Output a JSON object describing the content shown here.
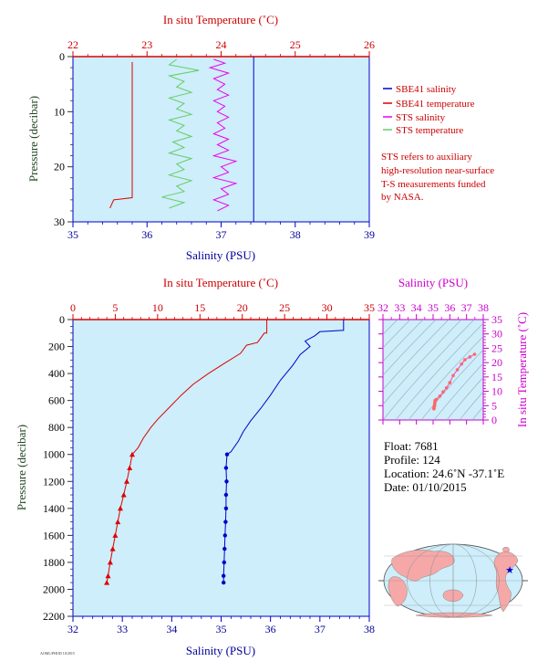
{
  "colors": {
    "plot_bg": "#cdeefa",
    "salinity": "#0000cc",
    "temperature": "#dd0000",
    "sts_salinity": "#ee00ee",
    "sts_temperature": "#66cc66",
    "sal_axis_text": "#000099",
    "temp_axis_text": "#cc0000",
    "pressure_axis_text": "#224422",
    "ts_axis_text": "#cc00cc",
    "legend_text": "#cc0000"
  },
  "top_chart": {
    "temp_axis_title": "In situ Temperature (˚C)",
    "sal_axis_title": "Salinity (PSU)",
    "pressure_axis_title": "Pressure (decibar)",
    "temp_ticks": [
      "22",
      "23",
      "24",
      "25",
      "26"
    ],
    "sal_ticks": [
      "35",
      "36",
      "37",
      "38",
      "39"
    ],
    "pressure_ticks": [
      "0",
      "10",
      "20",
      "30"
    ],
    "legend": [
      {
        "label": "SBE41 salinity",
        "color": "#0000cc"
      },
      {
        "label": "SBE41 temperature",
        "color": "#dd0000"
      },
      {
        "label": "STS salinity",
        "color": "#ee00ee"
      },
      {
        "label": "STS temperature",
        "color": "#66cc66"
      }
    ],
    "note_lines": [
      "STS refers to auxiliary",
      "high-resolution near-surface",
      "T-S measurements funded",
      "by NASA."
    ]
  },
  "bottom_chart": {
    "temp_axis_title": "In situ Temperature (˚C)",
    "sal_axis_title": "Salinity (PSU)",
    "pressure_axis_title": "Pressure (decibar)",
    "temp_ticks": [
      "0",
      "5",
      "10",
      "15",
      "20",
      "25",
      "30",
      "35"
    ],
    "sal_ticks": [
      "32",
      "33",
      "34",
      "35",
      "36",
      "37",
      "38"
    ],
    "pressure_ticks": [
      "0",
      "200",
      "400",
      "600",
      "800",
      "1000",
      "1200",
      "1400",
      "1600",
      "1800",
      "2000",
      "2200"
    ]
  },
  "ts_chart": {
    "sal_axis_title": "Salinity (PSU)",
    "temp_axis_title": "In situ Temperature (˚C)",
    "sal_ticks": [
      "32",
      "33",
      "34",
      "35",
      "36",
      "37",
      "38"
    ],
    "temp_ticks": [
      "35",
      "30",
      "25",
      "20",
      "15",
      "10",
      "5",
      "0"
    ]
  },
  "info": {
    "float_line": "Float: 7681",
    "profile_line": "Profile: 124",
    "location_line": "Location: 24.6˚N -37.1˚E",
    "date_line": "Date: 01/10/2015"
  },
  "footer_code": "AOML/PHOD 10/2015",
  "chart_data": [
    {
      "type": "line",
      "title": "",
      "xlabel": "Salinity (PSU)",
      "x2label": "In situ Temperature (˚C)",
      "ylabel": "Pressure (decibar)",
      "xlim": [
        35,
        39
      ],
      "x2lim": [
        22,
        26
      ],
      "ylim": [
        30,
        0
      ],
      "series": [
        {
          "name": "SBE41 salinity",
          "axis": "salinity",
          "points": [
            [
              37.44,
              0
            ],
            [
              37.44,
              2
            ],
            [
              37.44,
              5
            ],
            [
              37.44,
              10
            ],
            [
              37.44,
              15
            ],
            [
              37.44,
              20
            ],
            [
              37.44,
              25
            ],
            [
              37.44,
              27.5
            ],
            [
              37.44,
              30
            ]
          ]
        },
        {
          "name": "SBE41 temperature",
          "axis": "temperature",
          "points": [
            [
              22.8,
              1
            ],
            [
              22.8,
              5
            ],
            [
              22.8,
              10
            ],
            [
              22.8,
              15
            ],
            [
              22.8,
              20
            ],
            [
              22.8,
              25
            ],
            [
              22.8,
              25.6
            ],
            [
              22.55,
              26
            ],
            [
              22.5,
              27.5
            ]
          ]
        },
        {
          "name": "STS salinity",
          "axis": "salinity",
          "points": [
            [
              36.9,
              0.5
            ],
            [
              37.05,
              1.2
            ],
            [
              36.85,
              2
            ],
            [
              37.1,
              3
            ],
            [
              36.9,
              4
            ],
            [
              37.05,
              5
            ],
            [
              36.95,
              6
            ],
            [
              37.1,
              7
            ],
            [
              36.9,
              8
            ],
            [
              37.05,
              9
            ],
            [
              36.95,
              10
            ],
            [
              37.1,
              11
            ],
            [
              36.95,
              12
            ],
            [
              37.05,
              13
            ],
            [
              36.9,
              14
            ],
            [
              37.1,
              15
            ],
            [
              36.95,
              16
            ],
            [
              37.1,
              17
            ],
            [
              36.9,
              18
            ],
            [
              37.2,
              19
            ],
            [
              37.0,
              20
            ],
            [
              37.1,
              21
            ],
            [
              36.9,
              22
            ],
            [
              37.2,
              23
            ],
            [
              37.0,
              24
            ],
            [
              37.1,
              25
            ],
            [
              36.9,
              26
            ],
            [
              37.1,
              27
            ],
            [
              36.95,
              28
            ]
          ]
        },
        {
          "name": "STS temperature",
          "axis": "temperature",
          "points": [
            [
              23.4,
              0.5
            ],
            [
              23.3,
              1.5
            ],
            [
              23.7,
              2.5
            ],
            [
              23.3,
              3.5
            ],
            [
              23.5,
              4.5
            ],
            [
              23.4,
              5.5
            ],
            [
              23.6,
              6.5
            ],
            [
              23.3,
              7.5
            ],
            [
              23.5,
              8.5
            ],
            [
              23.4,
              9.5
            ],
            [
              23.6,
              10.5
            ],
            [
              23.3,
              11.5
            ],
            [
              23.5,
              12.5
            ],
            [
              23.4,
              13.5
            ],
            [
              23.6,
              14.5
            ],
            [
              23.35,
              15.5
            ],
            [
              23.5,
              16.5
            ],
            [
              23.3,
              17.5
            ],
            [
              23.6,
              18.5
            ],
            [
              23.4,
              19.5
            ],
            [
              23.5,
              20.5
            ],
            [
              23.3,
              21.5
            ],
            [
              23.6,
              22.5
            ],
            [
              23.4,
              23.5
            ],
            [
              23.5,
              24.5
            ],
            [
              23.2,
              25.5
            ],
            [
              23.5,
              26.5
            ],
            [
              23.3,
              27.5
            ]
          ]
        }
      ]
    },
    {
      "type": "line",
      "title": "",
      "xlabel": "Salinity (PSU)",
      "x2label": "In situ Temperature (˚C)",
      "ylabel": "Pressure (decibar)",
      "xlim": [
        32,
        38
      ],
      "x2lim": [
        0,
        35
      ],
      "ylim": [
        2200,
        0
      ],
      "series": [
        {
          "name": "",
          "axis": "salinity",
          "points": [
            [
              37.48,
              0
            ],
            [
              37.48,
              80
            ],
            [
              37.0,
              90
            ],
            [
              36.9,
              120
            ],
            [
              36.7,
              160
            ],
            [
              36.8,
              200
            ],
            [
              36.6,
              260
            ],
            [
              36.45,
              340
            ],
            [
              36.2,
              450
            ],
            [
              36.0,
              560
            ],
            [
              35.8,
              660
            ],
            [
              35.6,
              750
            ],
            [
              35.45,
              830
            ],
            [
              35.35,
              900
            ],
            [
              35.2,
              980
            ],
            [
              35.12,
              1000
            ],
            [
              35.1,
              1100
            ],
            [
              35.11,
              1200
            ],
            [
              35.1,
              1300
            ],
            [
              35.1,
              1400
            ],
            [
              35.09,
              1500
            ],
            [
              35.08,
              1600
            ],
            [
              35.07,
              1700
            ],
            [
              35.06,
              1800
            ],
            [
              35.05,
              1900
            ],
            [
              35.05,
              1950
            ]
          ]
        },
        {
          "name": "",
          "axis": "temperature",
          "points": [
            [
              22.9,
              0
            ],
            [
              22.9,
              100
            ],
            [
              22.6,
              100
            ],
            [
              21.8,
              170
            ],
            [
              20.5,
              190
            ],
            [
              19.8,
              250
            ],
            [
              18.0,
              320
            ],
            [
              16.0,
              400
            ],
            [
              14.2,
              480
            ],
            [
              12.8,
              560
            ],
            [
              11.4,
              650
            ],
            [
              10.0,
              740
            ],
            [
              9.2,
              800
            ],
            [
              8.3,
              880
            ],
            [
              7.7,
              950
            ],
            [
              7.0,
              1000
            ],
            [
              6.7,
              1100
            ],
            [
              6.35,
              1200
            ],
            [
              6.0,
              1300
            ],
            [
              5.6,
              1400
            ],
            [
              5.3,
              1500
            ],
            [
              5.0,
              1600
            ],
            [
              4.7,
              1700
            ],
            [
              4.4,
              1800
            ],
            [
              4.15,
              1900
            ],
            [
              4.0,
              1950
            ]
          ]
        }
      ]
    },
    {
      "type": "scatter",
      "title": "",
      "xlabel": "Salinity (PSU)",
      "ylabel": "In situ Temperature (˚C)",
      "xlim": [
        32,
        38
      ],
      "ylim": [
        0,
        35
      ],
      "series": [
        {
          "name": "",
          "points": [
            [
              37.48,
              22.9
            ],
            [
              37.2,
              22.0
            ],
            [
              36.9,
              21.0
            ],
            [
              36.7,
              19.5
            ],
            [
              36.45,
              17.5
            ],
            [
              36.2,
              15.5
            ],
            [
              36.0,
              13.0
            ],
            [
              35.8,
              11.2
            ],
            [
              35.6,
              9.8
            ],
            [
              35.4,
              8.3
            ],
            [
              35.2,
              7.2
            ],
            [
              35.12,
              6.8
            ],
            [
              35.11,
              6.3
            ],
            [
              35.1,
              5.8
            ],
            [
              35.09,
              5.3
            ],
            [
              35.08,
              4.9
            ],
            [
              35.06,
              4.5
            ],
            [
              35.05,
              4.1
            ],
            [
              35.05,
              3.9
            ]
          ]
        }
      ]
    }
  ]
}
